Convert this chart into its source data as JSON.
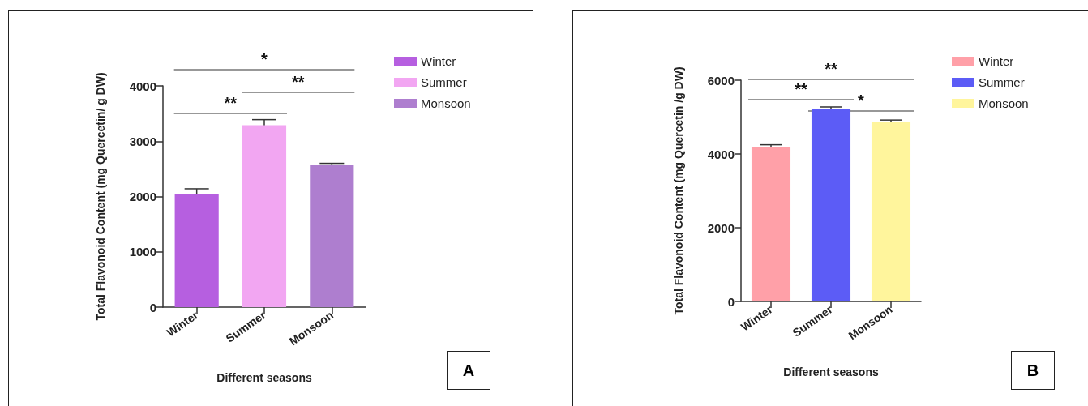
{
  "chart_data": [
    {
      "type": "bar",
      "xlabel": "Different seasons",
      "ylabel": "Total Flavonoid Content (mg Quercetin/ g DW)",
      "categories": [
        "Winter",
        "Summer",
        "Monsoon"
      ],
      "ylim": [
        0,
        4000
      ],
      "yticks": [
        0,
        1000,
        2000,
        3000,
        4000
      ],
      "grid": false,
      "legend": "right",
      "series": [
        {
          "name": "Winter",
          "color": "#b65fe0",
          "values": [
            2040,
            null,
            null
          ],
          "errors": [
            100,
            null,
            null
          ]
        },
        {
          "name": "Summer",
          "color": "#f2a6f2",
          "values": [
            null,
            3290,
            null
          ],
          "errors": [
            null,
            100,
            null
          ]
        },
        {
          "name": "Monsoon",
          "color": "#ae7ecf",
          "values": [
            null,
            null,
            2570
          ],
          "errors": [
            null,
            null,
            30
          ]
        }
      ],
      "annotations": [
        "*",
        "**",
        "**",
        "A"
      ]
    },
    {
      "type": "bar",
      "xlabel": "Different seasons",
      "ylabel": "Total Flavonoid Content (mg Quercetin /g DW)",
      "categories": [
        "Winter",
        "Summer",
        "Monsoon"
      ],
      "ylim": [
        0,
        6000
      ],
      "yticks": [
        0,
        2000,
        4000,
        6000
      ],
      "grid": false,
      "legend": "right",
      "series": [
        {
          "name": "Winter",
          "color": "#ffa0a8",
          "values": [
            4190,
            null,
            null
          ],
          "errors": [
            60,
            null,
            null
          ]
        },
        {
          "name": "Summer",
          "color": "#5c5cf6",
          "values": [
            null,
            5210,
            null
          ],
          "errors": [
            null,
            65,
            null
          ]
        },
        {
          "name": "Monsoon",
          "color": "#fff59c",
          "values": [
            null,
            null,
            4880
          ],
          "errors": [
            null,
            null,
            40
          ]
        }
      ],
      "annotations": [
        "**",
        "**",
        "*",
        "B"
      ]
    }
  ]
}
